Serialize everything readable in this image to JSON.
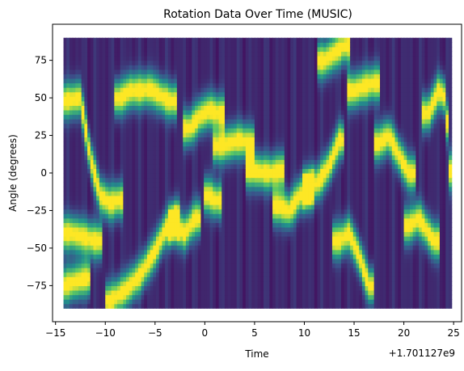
{
  "chart_data": {
    "type": "heatmap",
    "title": "Rotation Data Over Time (MUSIC)",
    "xlabel": "Time",
    "ylabel": "Angle (degrees)",
    "x_offset_text": "+1.701127e9",
    "xlim": [
      -15.3,
      25.8
    ],
    "ylim": [
      -99,
      99
    ],
    "data_x_range": [
      -14.2,
      24.8
    ],
    "data_y_range": [
      -90,
      90
    ],
    "x_ticks": [
      -15,
      -10,
      -5,
      0,
      5,
      10,
      15,
      20,
      25
    ],
    "x_tick_labels": [
      "−15",
      "−10",
      "−5",
      "0",
      "5",
      "10",
      "15",
      "20",
      "25"
    ],
    "y_ticks": [
      -75,
      -50,
      -25,
      0,
      25,
      50,
      75
    ],
    "y_tick_labels": [
      "−75",
      "−50",
      "−25",
      "0",
      "25",
      "50",
      "75"
    ],
    "colormap": "viridis",
    "colors": [
      "#440154",
      "#3b528b",
      "#21918c",
      "#5ec962",
      "#fde725"
    ],
    "grid": false,
    "peak_tracks": [
      {
        "t": [
          -14.2,
          -12.5,
          -11.5,
          -10.5,
          -9.5,
          -8.8
        ],
        "angle": [
          48,
          50,
          10,
          -15,
          -20,
          -18
        ]
      },
      {
        "t": [
          -14.2,
          -13,
          -12
        ],
        "angle": [
          -75,
          -72,
          -70
        ]
      },
      {
        "t": [
          -13.5,
          -12.3,
          -11
        ],
        "angle": [
          -40,
          -42,
          -45
        ]
      },
      {
        "t": [
          -8.5,
          -7.5,
          -6.5,
          -5.5,
          -4.5,
          -3.5
        ],
        "angle": [
          50,
          55,
          55,
          56,
          52,
          48
        ]
      },
      {
        "t": [
          -9.5,
          -8,
          -6.5,
          -5,
          -4,
          -3
        ],
        "angle": [
          -85,
          -78,
          -68,
          -52,
          -38,
          -30
        ]
      },
      {
        "t": [
          -3,
          -2,
          -1
        ],
        "angle": [
          -35,
          -40,
          -30
        ]
      },
      {
        "t": [
          -1.5,
          -0.5,
          0.5,
          1.5
        ],
        "angle": [
          30,
          38,
          42,
          40
        ]
      },
      {
        "t": [
          0.5,
          1
        ],
        "angle": [
          -15,
          -18
        ]
      },
      {
        "t": [
          1.5,
          2.5,
          3.5,
          4.5
        ],
        "angle": [
          18,
          20,
          22,
          20
        ]
      },
      {
        "t": [
          4.6,
          5.5,
          6.5,
          7.5
        ],
        "angle": [
          2,
          1,
          0,
          2
        ]
      },
      {
        "t": [
          7.5,
          8.5,
          9.5,
          10.5
        ],
        "angle": [
          -22,
          -25,
          -15,
          -10
        ]
      },
      {
        "t": [
          10.5,
          11.5,
          12.5,
          13.5
        ],
        "angle": [
          -10,
          -5,
          5,
          22
        ]
      },
      {
        "t": [
          12,
          13,
          14
        ],
        "angle": [
          75,
          80,
          85
        ]
      },
      {
        "t": [
          13.5,
          14.5,
          15.5,
          16.5
        ],
        "angle": [
          -45,
          -40,
          -55,
          -75
        ]
      },
      {
        "t": [
          15,
          16,
          17
        ],
        "angle": [
          55,
          58,
          60
        ]
      },
      {
        "t": [
          17.5,
          18.5,
          19.5,
          20.5
        ],
        "angle": [
          20,
          25,
          12,
          0
        ]
      },
      {
        "t": [
          20.5,
          21.5,
          22.5,
          23
        ],
        "angle": [
          -35,
          -30,
          -40,
          -45
        ]
      },
      {
        "t": [
          22.5,
          23.5,
          24.2,
          24.8
        ],
        "angle": [
          40,
          55,
          50,
          -15
        ]
      }
    ]
  }
}
